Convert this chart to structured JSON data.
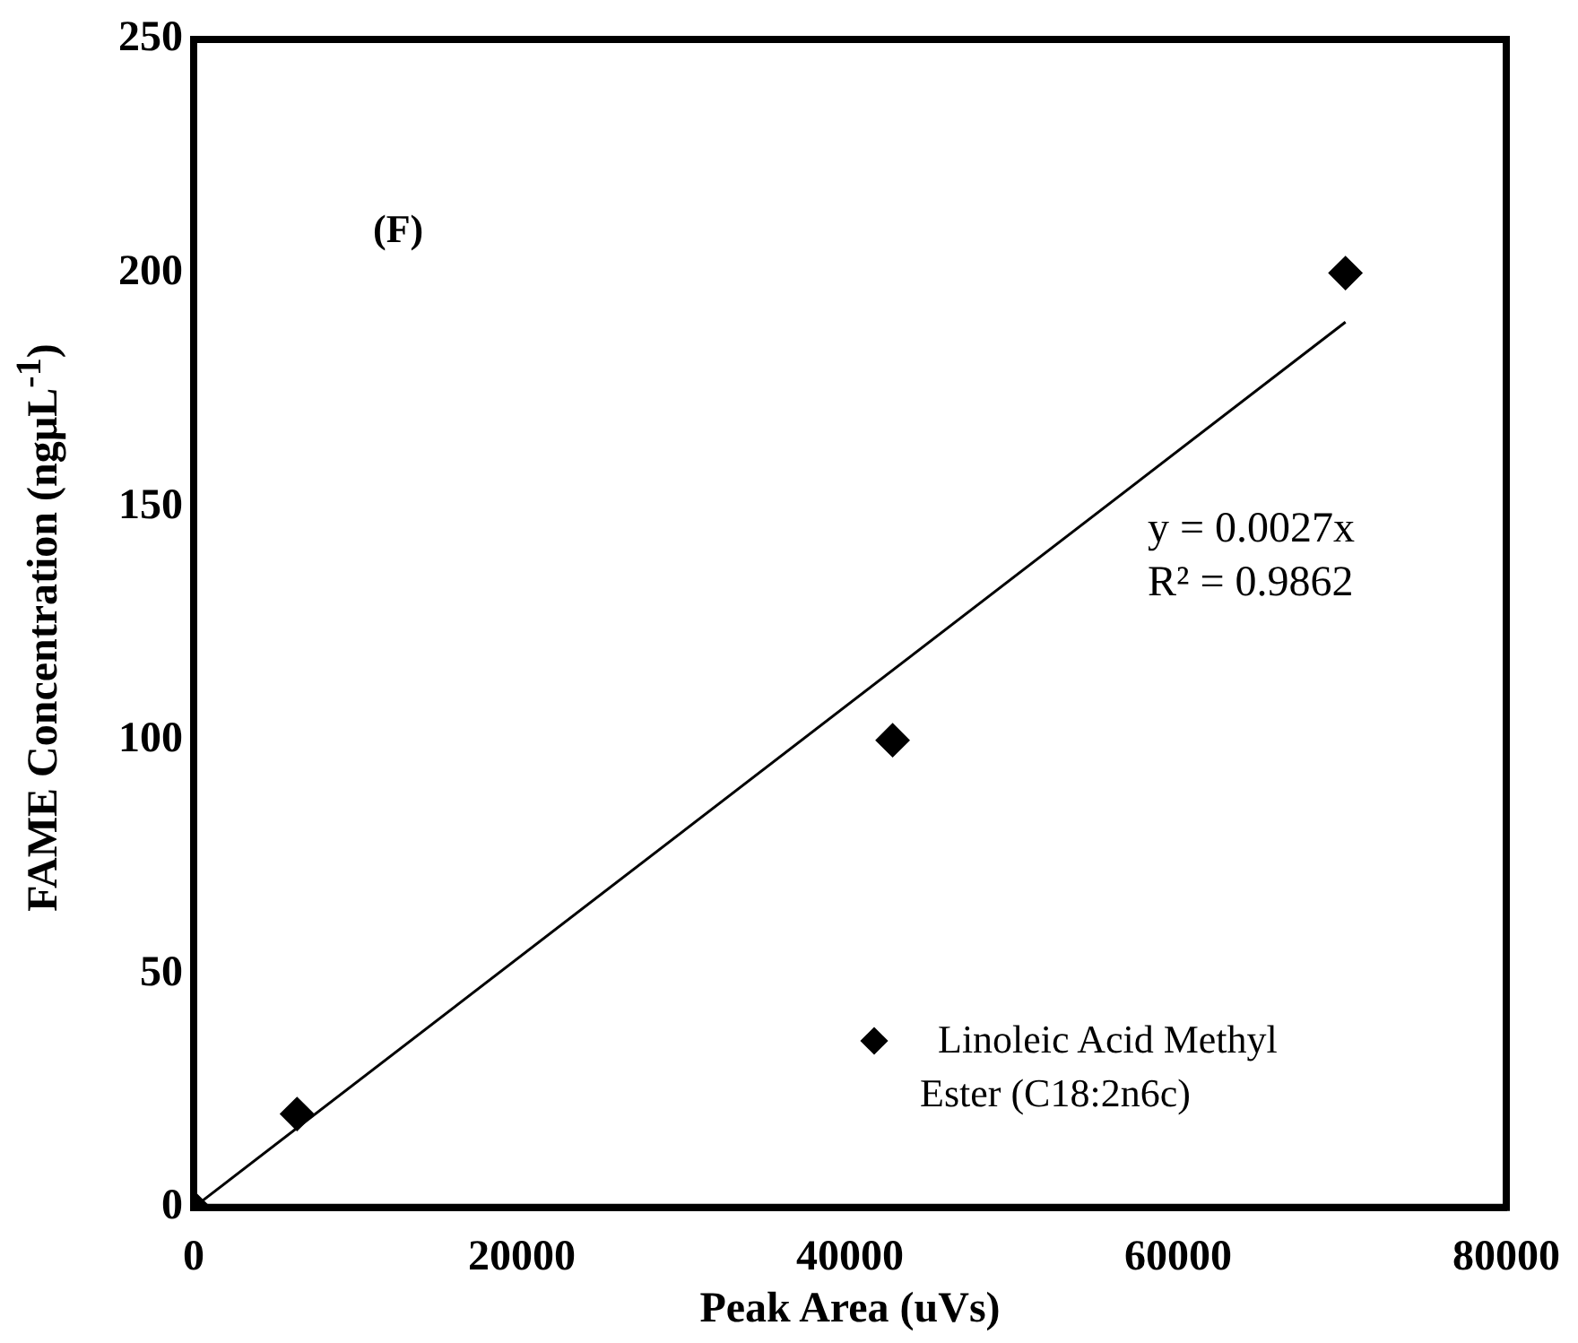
{
  "chart_data": {
    "type": "scatter",
    "xlabel": "Peak Area (uVs)",
    "ylabel": "FAME Concentration (ngµL$^{-1}$)",
    "x": [
      0,
      6300,
      42600,
      70200
    ],
    "series": [
      {
        "name": "Linoleic Acid Methyl Ester (C18:2n6c)",
        "color": "#000000",
        "values": [
          0,
          20,
          100,
          200
        ]
      },
      {
        "type": "line",
        "marker": "none",
        "color": "#000000",
        "x": [
          0,
          70200
        ],
        "values": [
          0,
          189.5
        ]
      }
    ],
    "xlim": [
      0,
      80000
    ],
    "xticks": [
      0,
      20000,
      40000,
      60000,
      80000
    ],
    "ylim": [
      0,
      250
    ],
    "yticks": [
      0,
      50,
      100,
      150,
      200,
      250
    ],
    "grid": false,
    "legend": "bottom right",
    "marker": "diamond",
    "annotations": [
      "(F)",
      "y = 0.0027x",
      "R² = 0.9862"
    ]
  }
}
